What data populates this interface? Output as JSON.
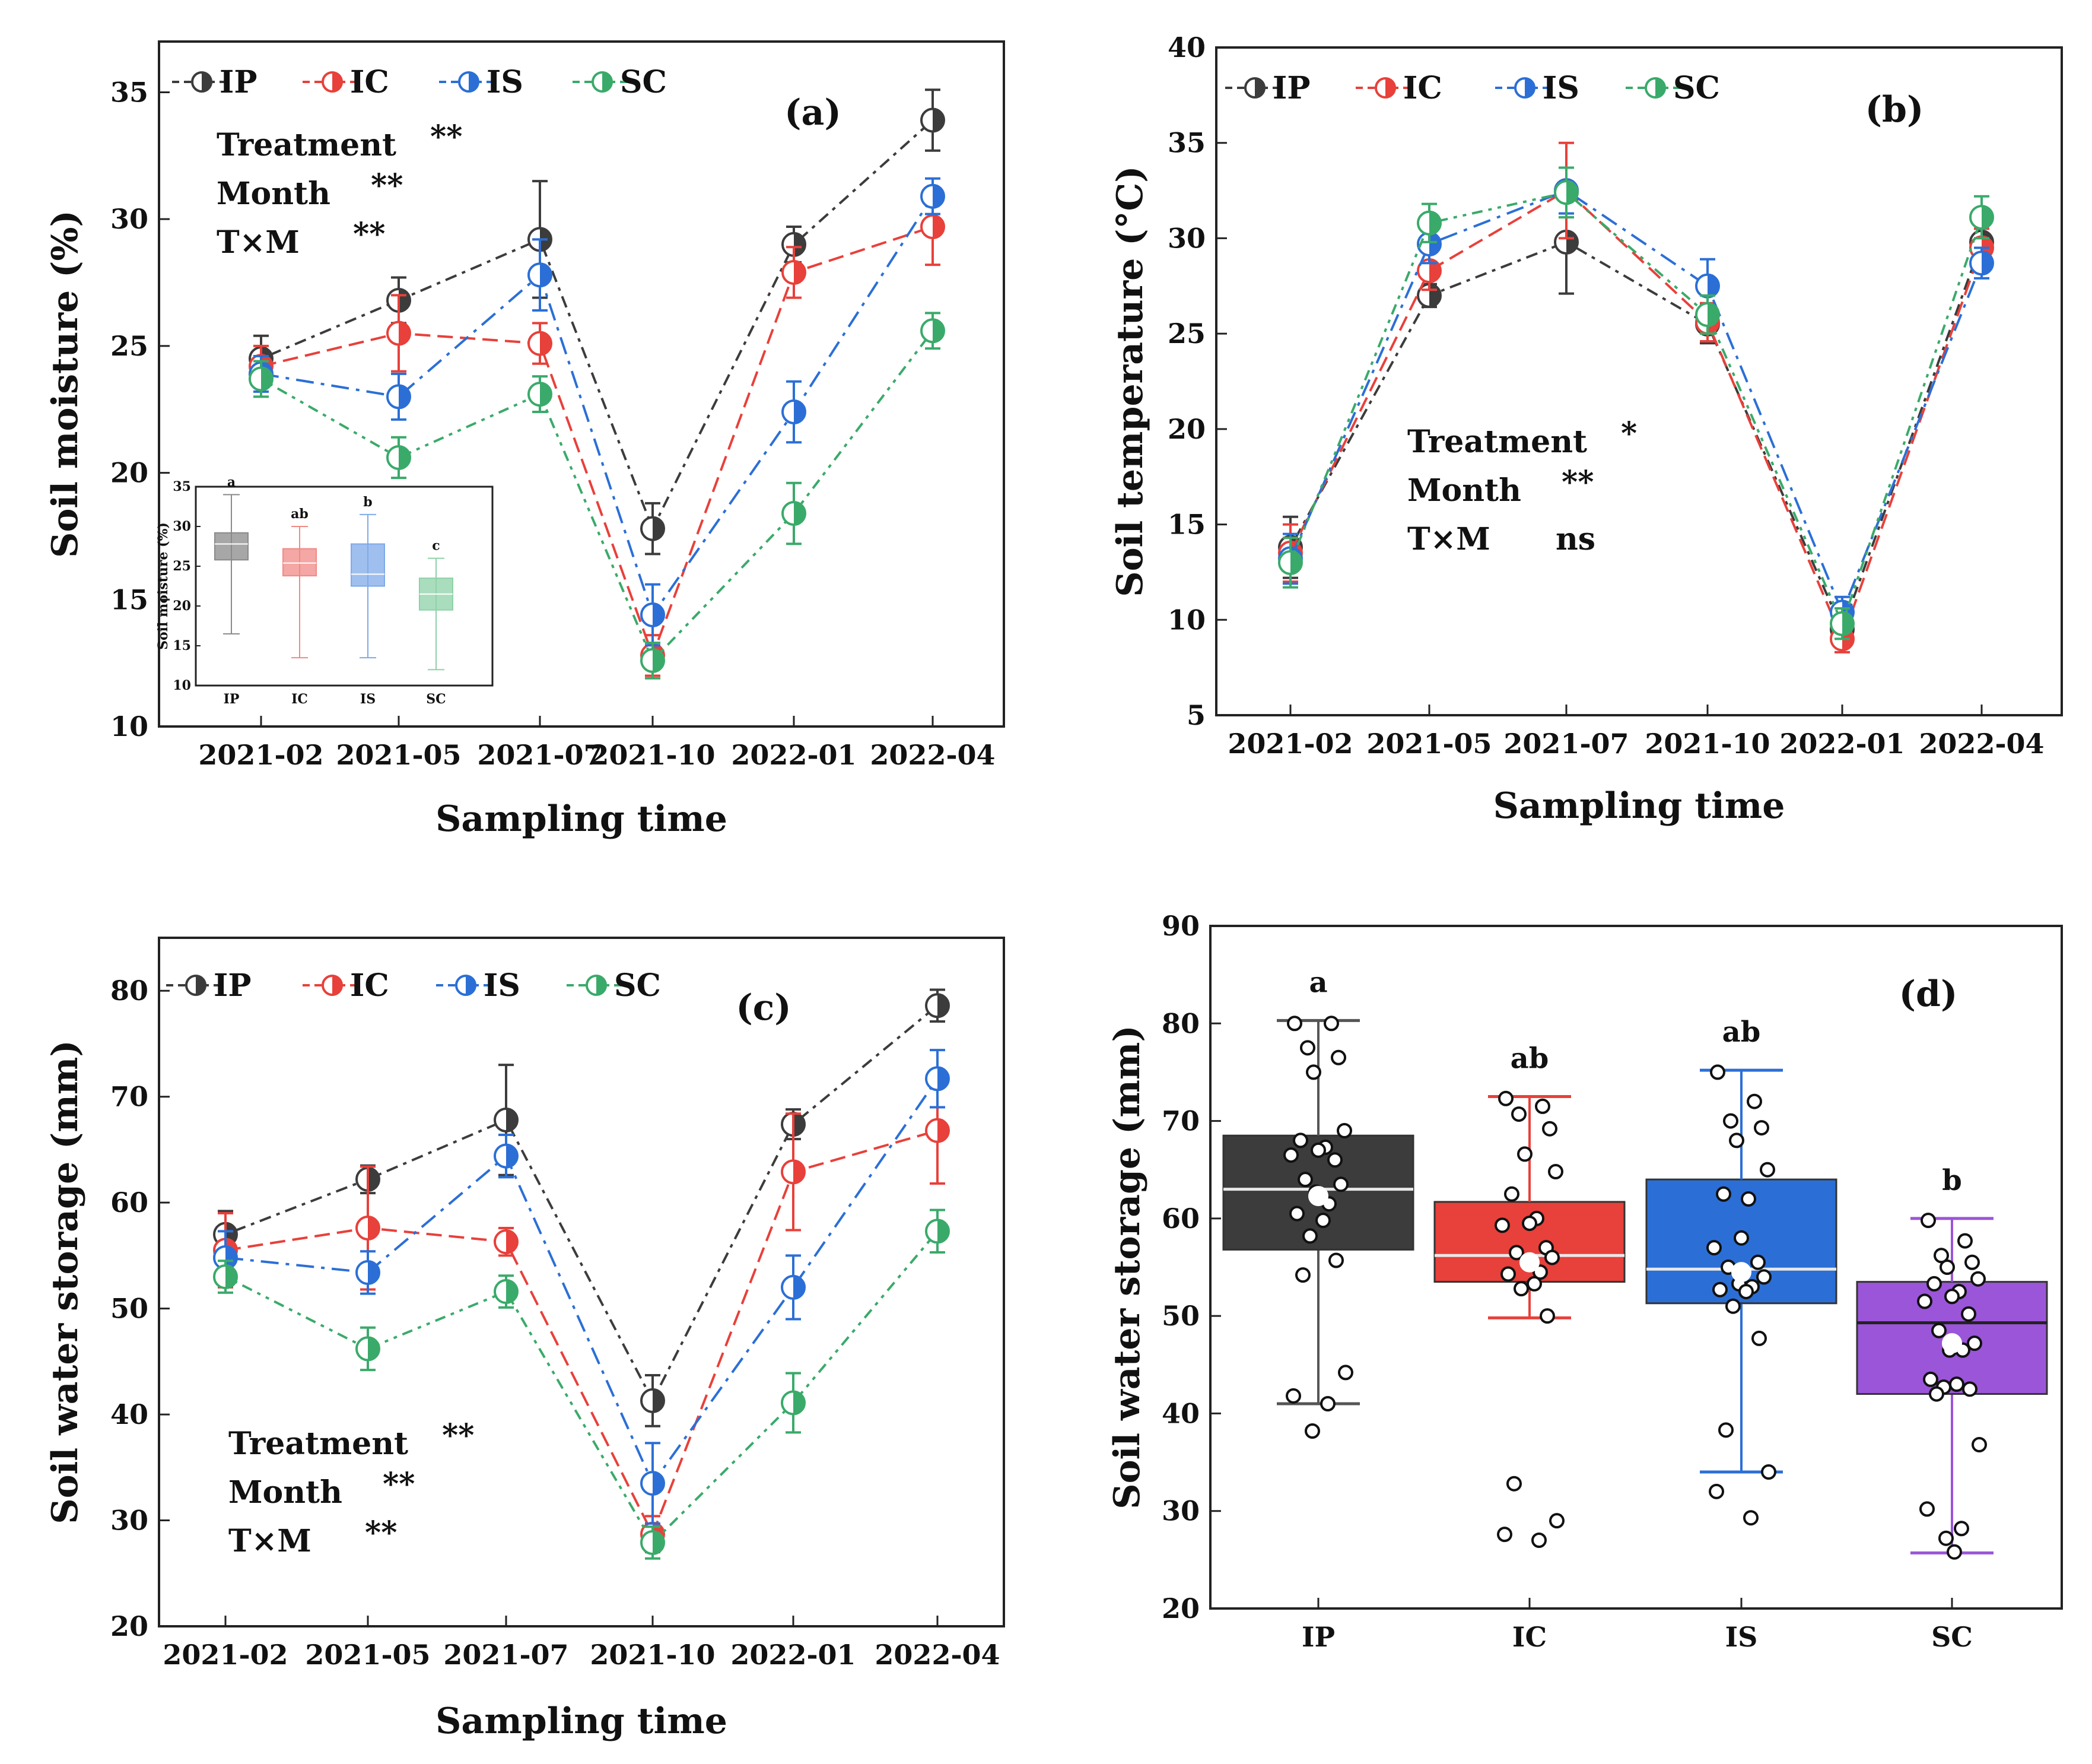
{
  "colors": {
    "IP": "#3c3c3c",
    "IC": "#e8403a",
    "IS": "#2b6fd6",
    "SC": "#3aaa6a",
    "SC_box_d": "#9b55d9"
  },
  "chart_data": [
    {
      "panel": "(a)",
      "type": "line",
      "ylabel": "Soil moisture (%)",
      "xlabel": "Sampling time",
      "ylim": [
        10,
        37
      ],
      "yticks": [
        10,
        15,
        20,
        25,
        30,
        35
      ],
      "categories": [
        "2021-02",
        "2021-05",
        "2021-07",
        "2021-10",
        "2022-01",
        "2022-04"
      ],
      "legend": [
        "IP",
        "IC",
        "IS",
        "SC"
      ],
      "stats": [
        {
          "label": "Treatment",
          "sig": "**"
        },
        {
          "label": "Month",
          "sig": "**"
        },
        {
          "label": "T×M",
          "sig": "**"
        }
      ],
      "series": [
        {
          "name": "IP",
          "values": [
            24.5,
            26.8,
            29.2,
            17.8,
            29.0,
            33.9
          ],
          "err": [
            0.9,
            0.9,
            2.3,
            1.0,
            0.7,
            1.2
          ]
        },
        {
          "name": "IC",
          "values": [
            24.2,
            25.5,
            25.1,
            12.8,
            27.9,
            29.7
          ],
          "err": [
            0.8,
            1.5,
            0.8,
            0.8,
            1.0,
            1.5
          ]
        },
        {
          "name": "IS",
          "values": [
            23.9,
            23.0,
            27.8,
            14.4,
            22.4,
            30.9
          ],
          "err": [
            0.7,
            0.9,
            1.4,
            1.2,
            1.2,
            0.7
          ]
        },
        {
          "name": "SC",
          "values": [
            23.7,
            20.6,
            23.1,
            12.6,
            18.4,
            25.6
          ],
          "err": [
            0.7,
            0.8,
            0.7,
            0.7,
            1.2,
            0.7
          ]
        }
      ],
      "inset": {
        "type": "box",
        "ylabel": "Soil moisture (%)",
        "ylim": [
          10,
          35
        ],
        "yticks": [
          10,
          15,
          20,
          25,
          30,
          35
        ],
        "categories": [
          "IP",
          "IC",
          "IS",
          "SC"
        ],
        "letters": [
          "a",
          "ab",
          "b",
          "c"
        ],
        "boxes": [
          {
            "q1": 25.8,
            "median": 27.8,
            "q3": 29.2,
            "min": 16.5,
            "max": 34.0
          },
          {
            "q1": 23.8,
            "median": 25.4,
            "q3": 27.2,
            "min": 13.5,
            "max": 30.0
          },
          {
            "q1": 22.5,
            "median": 24.0,
            "q3": 27.8,
            "min": 13.5,
            "max": 31.5
          },
          {
            "q1": 19.5,
            "median": 21.5,
            "q3": 23.5,
            "min": 12.0,
            "max": 26.0
          }
        ]
      }
    },
    {
      "panel": "(b)",
      "type": "line",
      "ylabel": "Soil temperature (°C)",
      "xlabel": "Sampling time",
      "ylim": [
        5,
        40
      ],
      "yticks": [
        5,
        10,
        15,
        20,
        25,
        30,
        35,
        40
      ],
      "categories": [
        "2021-02",
        "2021-05",
        "2021-07",
        "2021-10",
        "2022-01",
        "2022-04"
      ],
      "legend": [
        "IP",
        "IC",
        "IS",
        "SC"
      ],
      "stats": [
        {
          "label": "Treatment",
          "sig": "*"
        },
        {
          "label": "Month",
          "sig": "**"
        },
        {
          "label": "T×M",
          "sig": "ns"
        }
      ],
      "series": [
        {
          "name": "IP",
          "values": [
            13.8,
            27.0,
            29.8,
            25.5,
            9.5,
            29.8
          ],
          "err": [
            1.6,
            0.6,
            2.7,
            1.0,
            0.8,
            1.0
          ]
        },
        {
          "name": "IC",
          "values": [
            13.5,
            28.3,
            32.5,
            25.6,
            9.0,
            29.5
          ],
          "err": [
            1.5,
            1.0,
            2.5,
            1.0,
            0.7,
            1.0
          ]
        },
        {
          "name": "IS",
          "values": [
            13.2,
            29.7,
            32.5,
            27.5,
            10.4,
            28.7
          ],
          "err": [
            1.3,
            1.0,
            1.2,
            1.4,
            0.8,
            0.8
          ]
        },
        {
          "name": "SC",
          "values": [
            13.0,
            30.8,
            32.4,
            26.0,
            9.8,
            31.1
          ],
          "err": [
            1.3,
            1.0,
            1.3,
            1.0,
            0.8,
            1.1
          ]
        }
      ]
    },
    {
      "panel": "(c)",
      "type": "line",
      "ylabel": "Soil water storage (mm)",
      "xlabel": "Sampling time",
      "ylim": [
        20,
        85
      ],
      "yticks": [
        20,
        30,
        40,
        50,
        60,
        70,
        80
      ],
      "categories": [
        "2021-02",
        "2021-05",
        "2021-07",
        "2021-10",
        "2022-01",
        "2022-04"
      ],
      "legend": [
        "IP",
        "IC",
        "IS",
        "SC"
      ],
      "stats": [
        {
          "label": "Treatment",
          "sig": "**"
        },
        {
          "label": "Month",
          "sig": "**"
        },
        {
          "label": "T×M",
          "sig": "**"
        }
      ],
      "series": [
        {
          "name": "IP",
          "values": [
            57.0,
            62.2,
            67.8,
            41.3,
            67.4,
            78.6
          ],
          "err": [
            2.2,
            1.3,
            5.2,
            2.4,
            1.4,
            1.5
          ]
        },
        {
          "name": "IC",
          "values": [
            55.5,
            57.6,
            56.3,
            28.7,
            62.9,
            66.8
          ],
          "err": [
            3.5,
            5.8,
            1.3,
            1.7,
            5.5,
            5.0
          ]
        },
        {
          "name": "IS",
          "values": [
            54.8,
            53.4,
            64.4,
            33.5,
            52.0,
            71.7
          ],
          "err": [
            2.5,
            2.0,
            2.0,
            3.8,
            3.0,
            2.7
          ]
        },
        {
          "name": "SC",
          "values": [
            53.0,
            46.2,
            51.6,
            27.9,
            41.1,
            57.3
          ],
          "err": [
            1.5,
            2.0,
            1.5,
            1.5,
            2.8,
            2.0
          ]
        }
      ]
    },
    {
      "panel": "(d)",
      "type": "box",
      "ylabel": "Soil water storage (mm)",
      "xlabel": "",
      "ylim": [
        20,
        90
      ],
      "yticks": [
        20,
        30,
        40,
        50,
        60,
        70,
        80,
        90
      ],
      "categories": [
        "IP",
        "IC",
        "IS",
        "SC"
      ],
      "letters": [
        "a",
        "ab",
        "ab",
        "b"
      ],
      "boxes": [
        {
          "q1": 56.8,
          "median": 63.0,
          "q3": 68.5,
          "min": 41.0,
          "max": 80.3,
          "mean": 62.3,
          "points": [
            80.0,
            80.0,
            77.5,
            76.5,
            75.0,
            69.0,
            68.0,
            67.3,
            67.0,
            66.5,
            66.0,
            64.0,
            63.5,
            62.7,
            61.5,
            60.5,
            59.8,
            58.2,
            55.7,
            54.2,
            44.2,
            41.8,
            41.0,
            38.2
          ]
        },
        {
          "q1": 53.5,
          "median": 56.2,
          "q3": 61.7,
          "min": 49.8,
          "max": 72.5,
          "mean": 55.5,
          "points": [
            72.3,
            71.5,
            70.7,
            69.2,
            66.6,
            64.8,
            62.5,
            60.0,
            59.5,
            59.3,
            57.0,
            56.5,
            56.0,
            55.5,
            54.5,
            54.3,
            53.3,
            52.8,
            50.0,
            32.8,
            29.0,
            27.6,
            27.0
          ]
        },
        {
          "q1": 51.3,
          "median": 54.8,
          "q3": 64.0,
          "min": 34.0,
          "max": 75.2,
          "mean": 54.5,
          "points": [
            75.0,
            72.0,
            70.0,
            69.3,
            68.0,
            65.0,
            62.5,
            62.0,
            58.0,
            57.0,
            55.5,
            55.0,
            54.0,
            53.3,
            53.0,
            52.7,
            52.5,
            51.0,
            47.7,
            38.3,
            34.0,
            32.0,
            29.3
          ]
        },
        {
          "q1": 42.0,
          "median": 49.3,
          "q3": 53.5,
          "min": 25.7,
          "max": 60.0,
          "mean": 47.2,
          "points": [
            59.8,
            57.7,
            56.2,
            55.5,
            55.0,
            53.8,
            53.3,
            52.5,
            52.0,
            51.5,
            50.2,
            48.5,
            47.2,
            46.5,
            46.5,
            43.5,
            43.0,
            42.7,
            42.5,
            42.0,
            36.8,
            30.2,
            28.2,
            27.2,
            25.8
          ]
        }
      ]
    }
  ]
}
